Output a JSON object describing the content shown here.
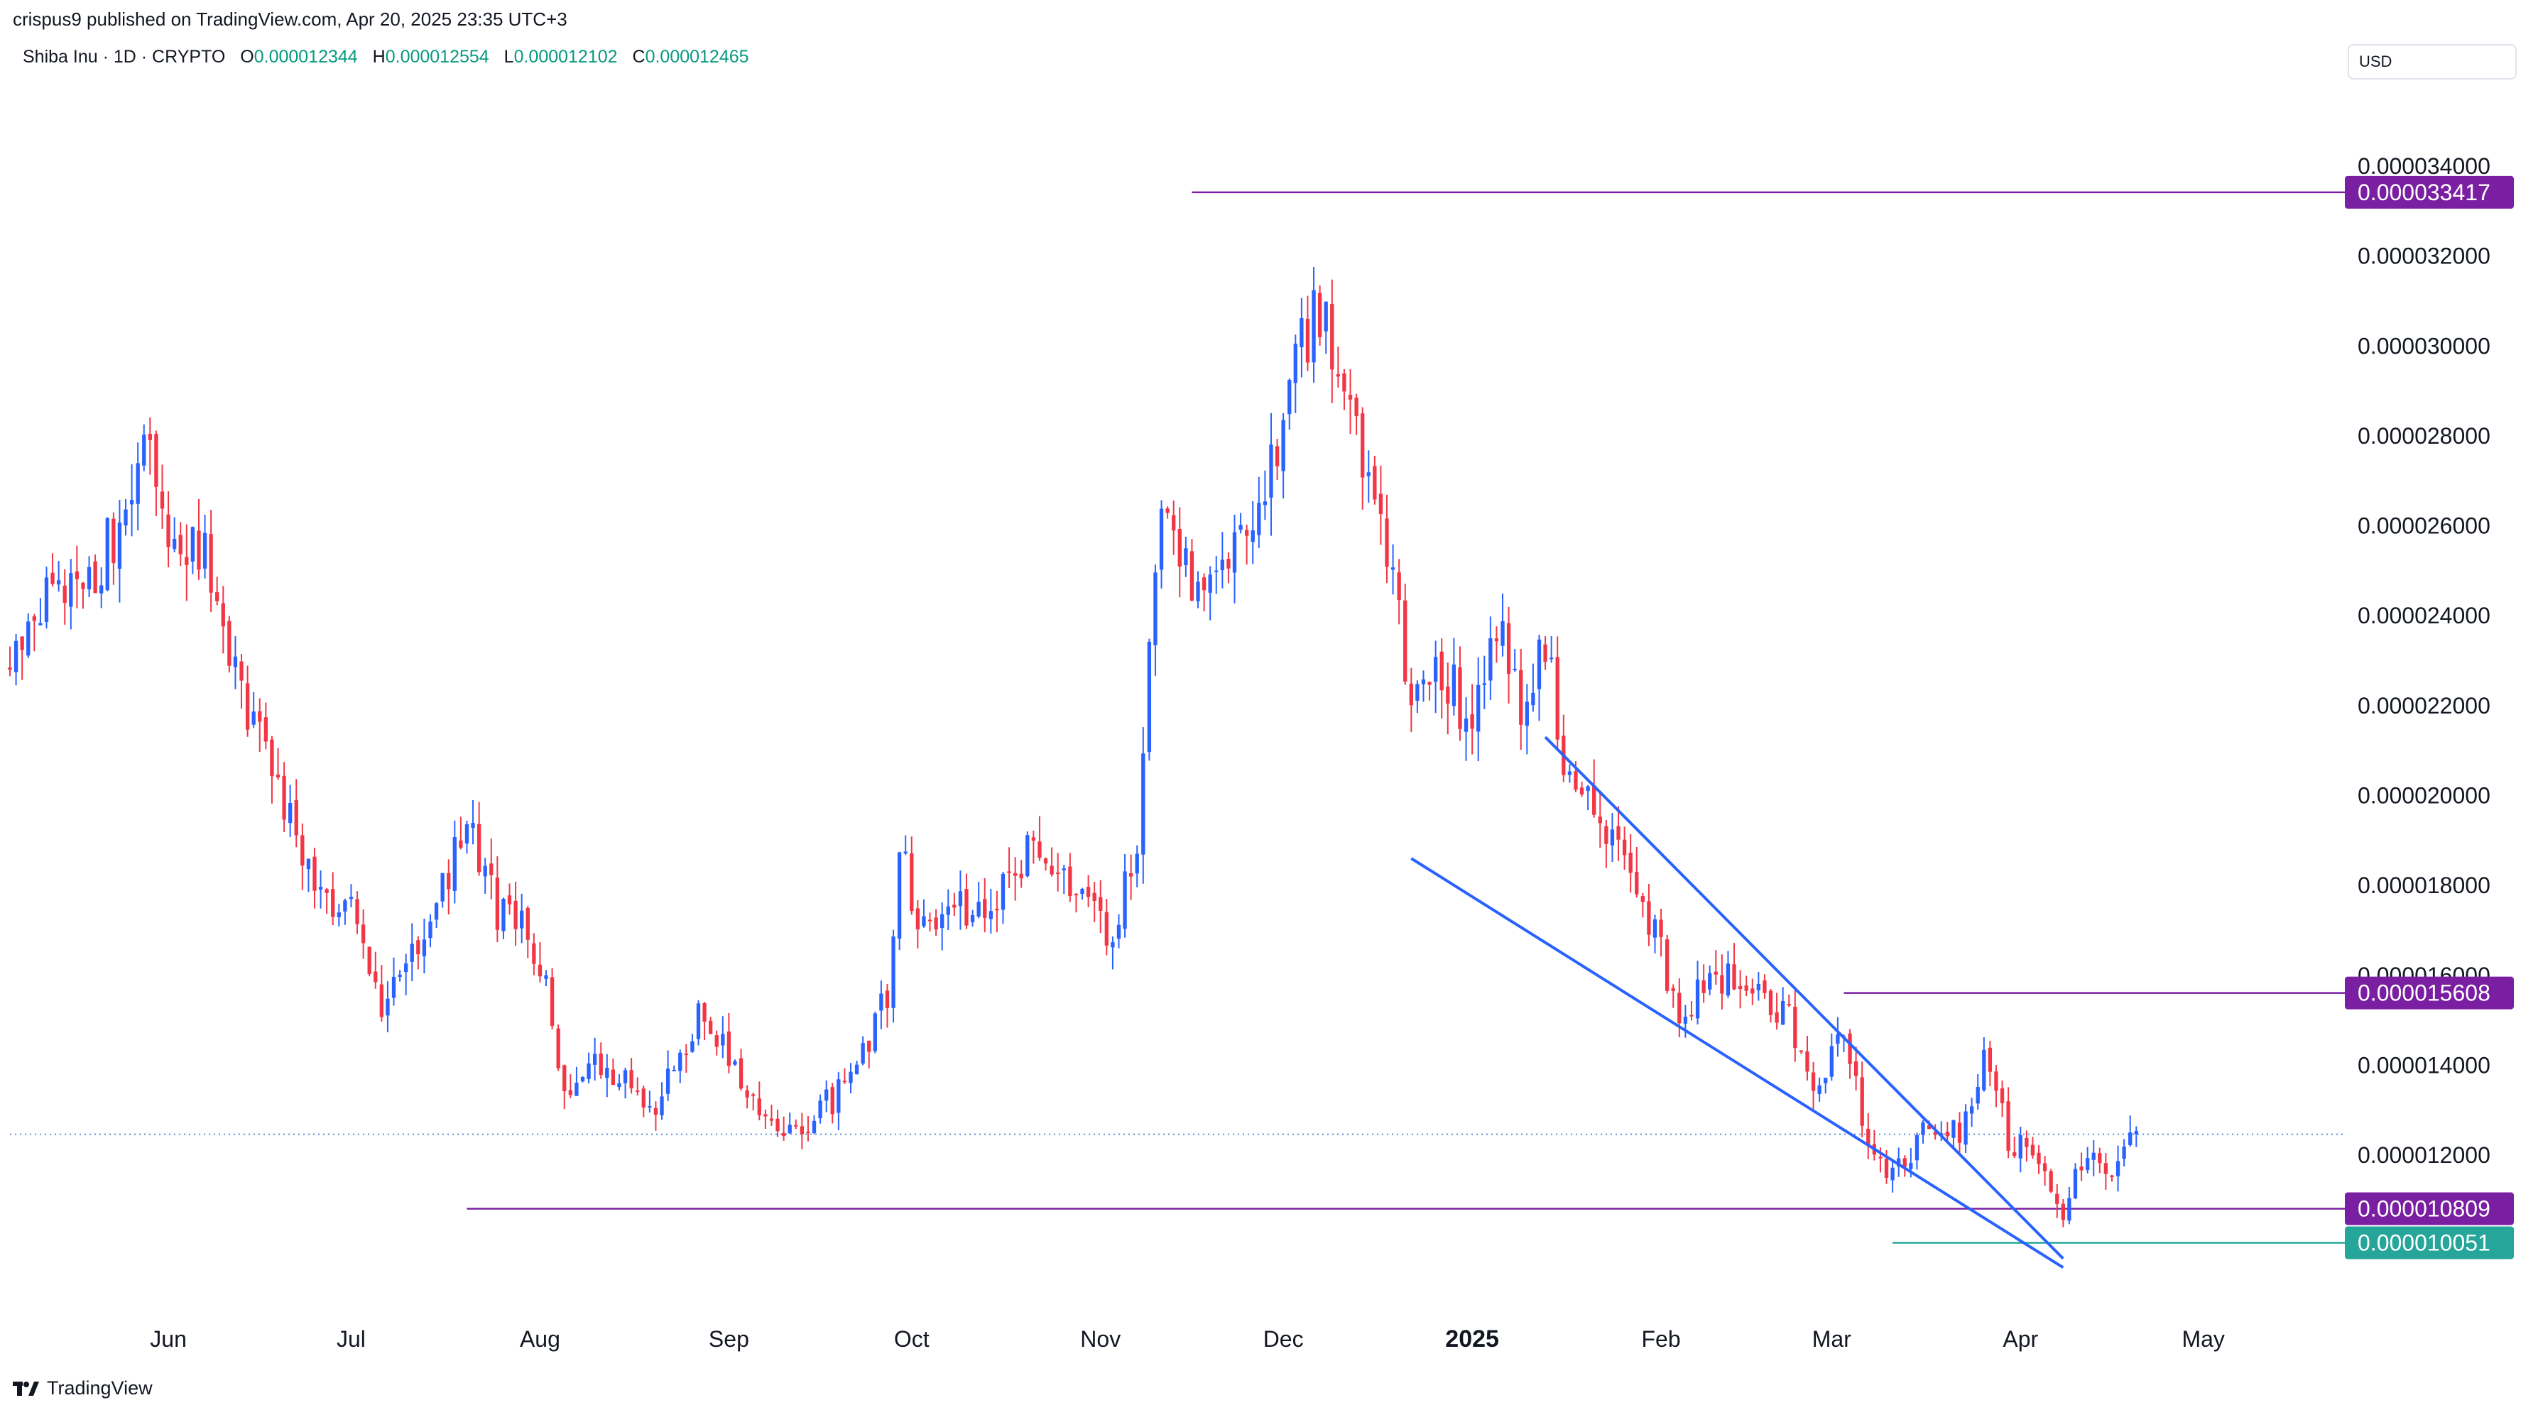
{
  "header": {
    "published_by": "crispus9 published on TradingView.com, Apr 20, 2025 23:35 UTC+3"
  },
  "legend": {
    "symbol": "Shiba Inu · 1D · CRYPTO",
    "open_label": "O",
    "open": "0.000012344",
    "high_label": "H",
    "high": "0.000012554",
    "low_label": "L",
    "low": "0.000012102",
    "close_label": "C",
    "close": "0.000012465"
  },
  "currency_button": "USD",
  "brand": "TradingView",
  "colors": {
    "up": "#2962ff",
    "down": "#f23645",
    "horizontal_line": "#7b1fa2",
    "badge_purple": "#7b1fa2",
    "badge_green": "#26a69a",
    "wedge_line": "#2962ff",
    "last_price_line": "#5b8bd6"
  },
  "chart_data": {
    "type": "candlestick",
    "y_axis_ticks": [
      "0.000034000",
      "0.000032000",
      "0.000030000",
      "0.000028000",
      "0.000026000",
      "0.000024000",
      "0.000022000",
      "0.000020000",
      "0.000018000",
      "0.000016000",
      "0.000014000",
      "0.000012000"
    ],
    "y_tick_values": [
      3.4e-05,
      3.2e-05,
      3e-05,
      2.8e-05,
      2.6e-05,
      2.4e-05,
      2.2e-05,
      2e-05,
      1.8e-05,
      1.6e-05,
      1.4e-05,
      1.2e-05
    ],
    "ylim": [
      8.7e-06,
      3.58e-05
    ],
    "x_axis_labels": [
      {
        "label": "Jun",
        "date": "2024-06-01",
        "bold": false
      },
      {
        "label": "Jul",
        "date": "2024-07-01",
        "bold": false
      },
      {
        "label": "Aug",
        "date": "2024-08-01",
        "bold": false
      },
      {
        "label": "Sep",
        "date": "2024-09-01",
        "bold": false
      },
      {
        "label": "Oct",
        "date": "2024-10-01",
        "bold": false
      },
      {
        "label": "Nov",
        "date": "2024-11-01",
        "bold": false
      },
      {
        "label": "Dec",
        "date": "2024-12-01",
        "bold": false
      },
      {
        "label": "2025",
        "date": "2025-01-01",
        "bold": true
      },
      {
        "label": "Feb",
        "date": "2025-02-01",
        "bold": false
      },
      {
        "label": "Mar",
        "date": "2025-03-01",
        "bold": false
      },
      {
        "label": "Apr",
        "date": "2025-04-01",
        "bold": false
      },
      {
        "label": "May",
        "date": "2025-05-01",
        "bold": false
      }
    ],
    "xlim": [
      "2024-05-06",
      "2025-05-24"
    ],
    "last_price": 1.2465e-05,
    "horizontal_levels": [
      {
        "label": "0.000033417",
        "value": 3.3417e-05,
        "from": "2024-11-16",
        "color": "purple"
      },
      {
        "label": "0.000015608",
        "value": 1.5608e-05,
        "from": "2025-03-03",
        "color": "purple"
      },
      {
        "label": "0.000010809",
        "value": 1.0809e-05,
        "from": "2024-07-20",
        "color": "purple"
      },
      {
        "label": "0.000010051",
        "value": 1.0051e-05,
        "from": "2025-03-11",
        "color": "green"
      }
    ],
    "trend_lines": [
      {
        "from": [
          "2024-12-22",
          1.86e-05
        ],
        "to": [
          "2025-04-08",
          9.5e-06
        ]
      },
      {
        "from": [
          "2025-01-13",
          2.13e-05
        ],
        "to": [
          "2025-04-08",
          9.7e-06
        ]
      }
    ],
    "anchors": [
      [
        "2024-05-06",
        2.28e-05
      ],
      [
        "2024-05-12",
        2.47e-05
      ],
      [
        "2024-05-18",
        2.42e-05
      ],
      [
        "2024-05-24",
        2.62e-05
      ],
      [
        "2024-05-28",
        2.78e-05
      ],
      [
        "2024-06-01",
        2.58e-05
      ],
      [
        "2024-06-07",
        2.52e-05
      ],
      [
        "2024-06-12",
        2.28e-05
      ],
      [
        "2024-06-20",
        1.99e-05
      ],
      [
        "2024-06-26",
        1.78e-05
      ],
      [
        "2024-07-01",
        1.74e-05
      ],
      [
        "2024-07-04",
        1.6e-05
      ],
      [
        "2024-07-06",
        1.51e-05
      ],
      [
        "2024-07-10",
        1.65e-05
      ],
      [
        "2024-07-15",
        1.76e-05
      ],
      [
        "2024-07-20",
        1.94e-05
      ],
      [
        "2024-07-25",
        1.75e-05
      ],
      [
        "2024-07-30",
        1.7e-05
      ],
      [
        "2024-08-03",
        1.52e-05
      ],
      [
        "2024-08-05",
        1.31e-05
      ],
      [
        "2024-08-10",
        1.4e-05
      ],
      [
        "2024-08-20",
        1.32e-05
      ],
      [
        "2024-08-28",
        1.53e-05
      ],
      [
        "2024-09-06",
        1.3e-05
      ],
      [
        "2024-09-12",
        1.26e-05
      ],
      [
        "2024-09-20",
        1.35e-05
      ],
      [
        "2024-09-27",
        1.55e-05
      ],
      [
        "2024-09-29",
        1.9e-05
      ],
      [
        "2024-10-02",
        1.7e-05
      ],
      [
        "2024-10-07",
        1.77e-05
      ],
      [
        "2024-10-14",
        1.74e-05
      ],
      [
        "2024-10-21",
        1.89e-05
      ],
      [
        "2024-10-28",
        1.78e-05
      ],
      [
        "2024-11-03",
        1.67e-05
      ],
      [
        "2024-11-07",
        1.9e-05
      ],
      [
        "2024-11-11",
        2.68e-05
      ],
      [
        "2024-11-16",
        2.45e-05
      ],
      [
        "2024-11-23",
        2.56e-05
      ],
      [
        "2024-11-28",
        2.65e-05
      ],
      [
        "2024-12-04",
        3e-05
      ],
      [
        "2024-12-08",
        3.1e-05
      ],
      [
        "2024-12-10",
        2.88e-05
      ],
      [
        "2024-12-14",
        2.78e-05
      ],
      [
        "2024-12-18",
        2.55e-05
      ],
      [
        "2024-12-22",
        2.19e-05
      ],
      [
        "2024-12-27",
        2.28e-05
      ],
      [
        "2025-01-01",
        2.16e-05
      ],
      [
        "2025-01-05",
        2.4e-05
      ],
      [
        "2025-01-09",
        2.2e-05
      ],
      [
        "2025-01-13",
        2.32e-05
      ],
      [
        "2025-01-17",
        2.02e-05
      ],
      [
        "2025-01-22",
        1.96e-05
      ],
      [
        "2025-01-27",
        1.8e-05
      ],
      [
        "2025-02-01",
        1.65e-05
      ],
      [
        "2025-02-04",
        1.52e-05
      ],
      [
        "2025-02-10",
        1.6e-05
      ],
      [
        "2025-02-16",
        1.58e-05
      ],
      [
        "2025-02-22",
        1.5e-05
      ],
      [
        "2025-02-27",
        1.35e-05
      ],
      [
        "2025-03-03",
        1.5e-05
      ],
      [
        "2025-03-06",
        1.28e-05
      ],
      [
        "2025-03-11",
        1.15e-05
      ],
      [
        "2025-03-17",
        1.26e-05
      ],
      [
        "2025-03-22",
        1.25e-05
      ],
      [
        "2025-03-26",
        1.41e-05
      ],
      [
        "2025-03-30",
        1.24e-05
      ],
      [
        "2025-04-04",
        1.2e-05
      ],
      [
        "2025-04-08",
        1.07e-05
      ],
      [
        "2025-04-12",
        1.22e-05
      ],
      [
        "2025-04-16",
        1.18e-05
      ],
      [
        "2025-04-20",
        1.24e-05
      ]
    ]
  }
}
